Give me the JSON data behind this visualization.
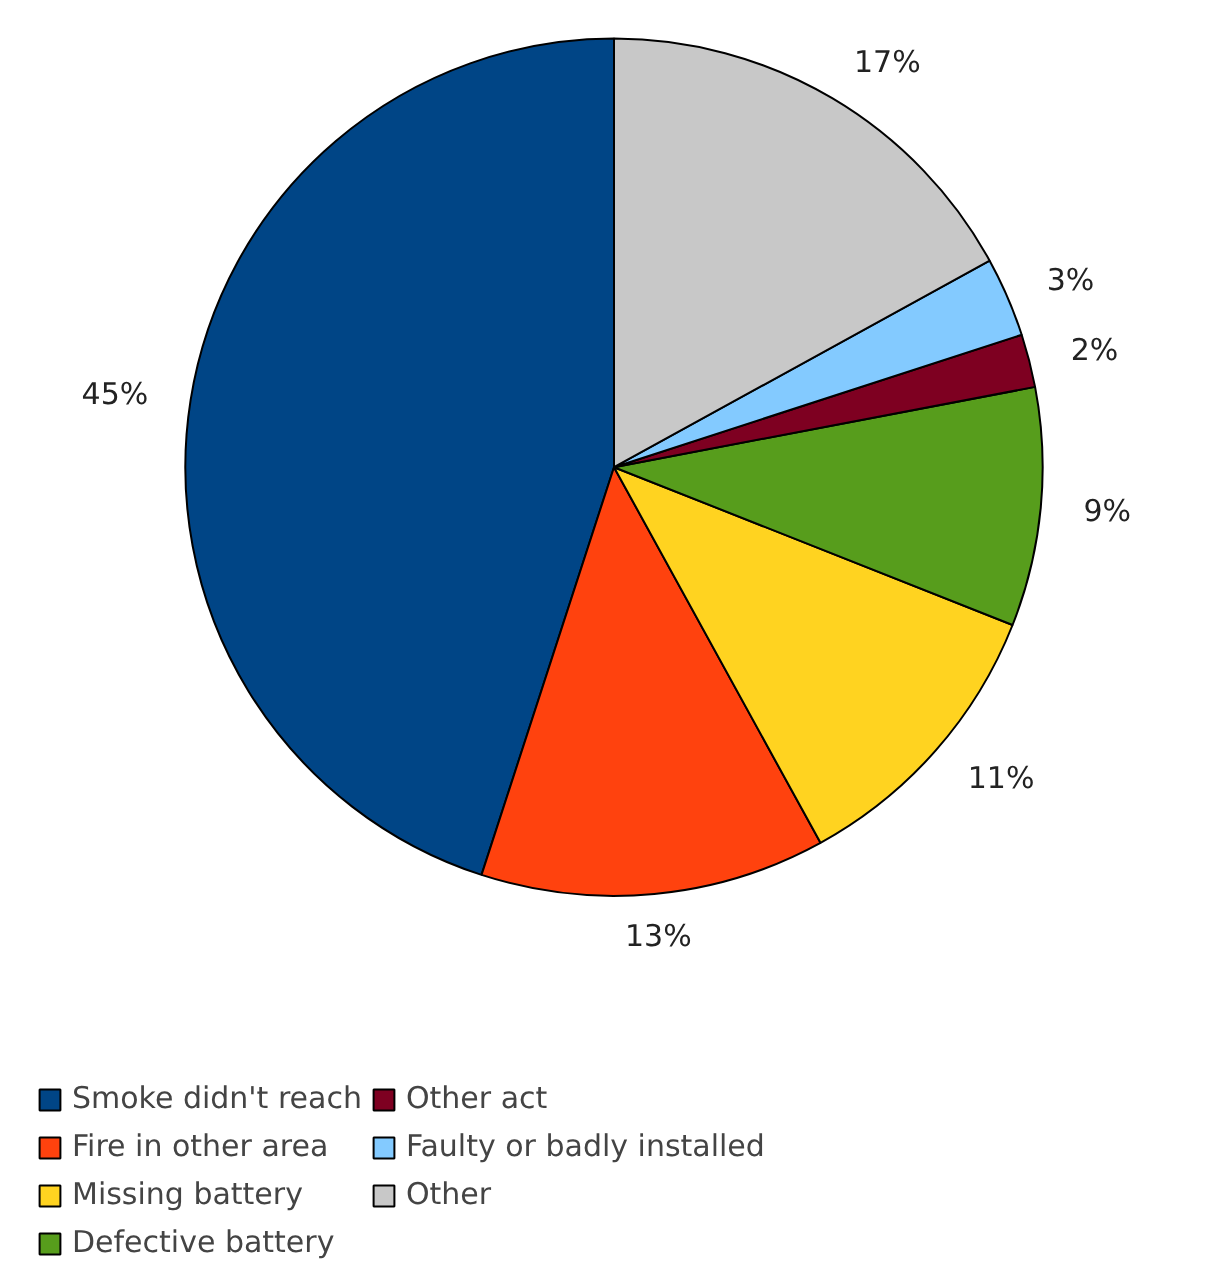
{
  "chart_data": {
    "type": "pie",
    "categories": [
      "Smoke didn't reach",
      "Fire in other area",
      "Missing battery",
      "Defective battery",
      "Other act",
      "Faulty or badly installed",
      "Other"
    ],
    "values": [
      45,
      13,
      11,
      9,
      2,
      3,
      17
    ],
    "value_labels": [
      "45%",
      "13%",
      "11%",
      "9%",
      "2%",
      "3%",
      "17%"
    ],
    "colors": [
      "#004586",
      "#ff420e",
      "#ffd320",
      "#579d1c",
      "#7e0021",
      "#83caff",
      "#c8c8c8"
    ],
    "legend": "bottom"
  }
}
